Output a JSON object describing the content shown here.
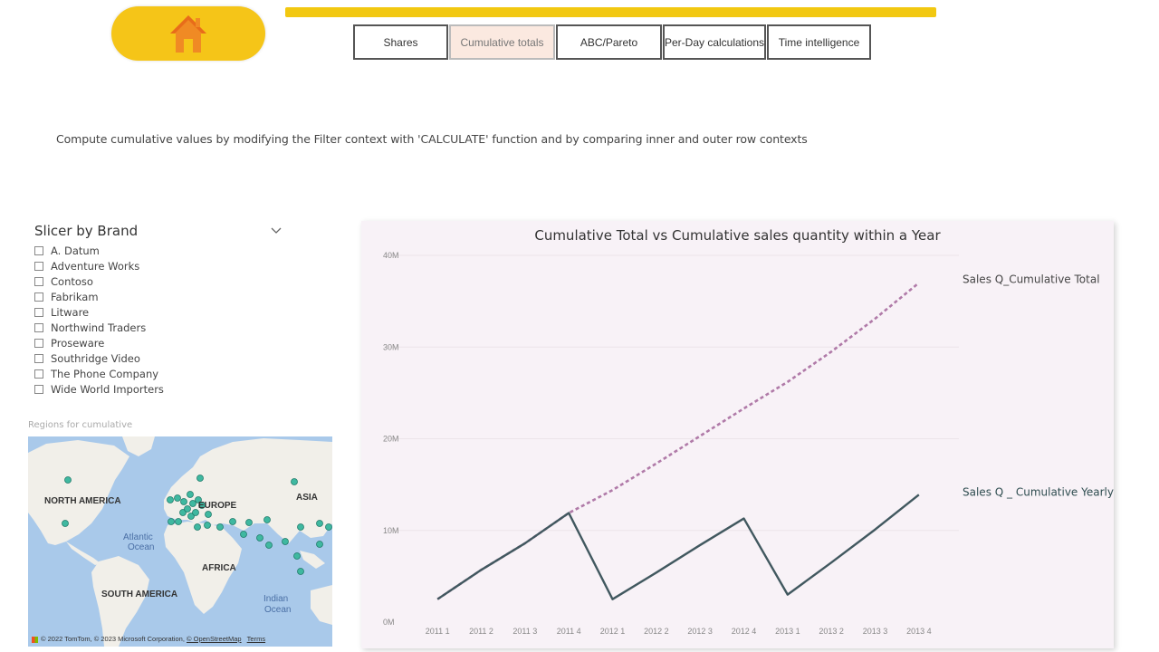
{
  "home": {
    "icon": "home-icon"
  },
  "tabs": [
    {
      "label": "Shares",
      "active": false
    },
    {
      "label": "Cumulative totals",
      "active": true
    },
    {
      "label": "ABC/Pareto",
      "active": false
    },
    {
      "label": "Per-Day calculations",
      "active": false
    },
    {
      "label": "Time intelligence",
      "active": false
    }
  ],
  "description": "Compute cumulative values by modifying the Filter context with 'CALCULATE' function and by comparing inner and outer row contexts",
  "slicer": {
    "title": "Slicer by Brand",
    "items": [
      "A. Datum",
      "Adventure Works",
      "Contoso",
      "Fabrikam",
      "Litware",
      "Northwind Traders",
      "Proseware",
      "Southridge Video",
      "The Phone Company",
      "Wide World Importers"
    ]
  },
  "map": {
    "title": "Regions for cumulative",
    "labels": {
      "north_america": "NORTH AMERICA",
      "europe": "EUROPE",
      "asia": "ASIA",
      "africa": "AFRICA",
      "south_america": "SOUTH AMERICA",
      "atlantic": "Atlantic",
      "ocean": "Ocean",
      "indian": "Indian",
      "indian_ocean": "Ocean"
    },
    "attribution": "© 2022 TomTom, © 2023 Microsoft Corporation,",
    "osm_link": "© OpenStreetMap",
    "terms_link": "Terms",
    "colors": {
      "water": "#a9c9ea",
      "land": "#f1efe9",
      "dot": "#3fb8a0"
    }
  },
  "chart_data": {
    "type": "line",
    "title": "Cumulative Total vs Cumulative sales quantity within a Year",
    "categories": [
      "2011 1",
      "2011 2",
      "2011 3",
      "2011 4",
      "2012 1",
      "2012 2",
      "2012 3",
      "2012 4",
      "2013 1",
      "2013 2",
      "2013 3",
      "2013 4"
    ],
    "y_ticks": [
      "0M",
      "10M",
      "20M",
      "30M",
      "40M"
    ],
    "ylim": [
      0,
      40000000
    ],
    "series": [
      {
        "name": "Sales Q_Cumulative Total",
        "color": "#b07aa8",
        "style": "dashed",
        "values": [
          2500000,
          5700000,
          8600000,
          11900000,
          14400000,
          17300000,
          20300000,
          23300000,
          26200000,
          29500000,
          33100000,
          37000000
        ]
      },
      {
        "name": "Sales Q _ Cumulative Yearly",
        "color": "#41585f",
        "style": "solid",
        "values": [
          2500000,
          5700000,
          8600000,
          11900000,
          2500000,
          5400000,
          8400000,
          11300000,
          3000000,
          6500000,
          10100000,
          13900000
        ]
      }
    ],
    "grid": true,
    "legend": "line-end labels"
  }
}
